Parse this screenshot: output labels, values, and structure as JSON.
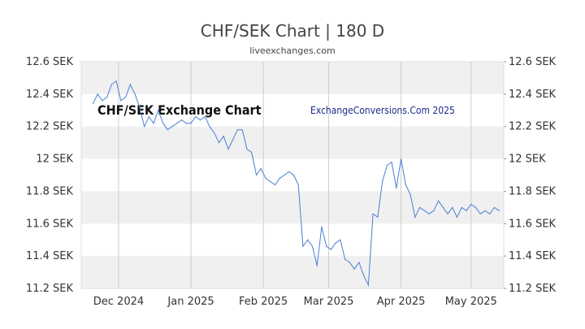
{
  "chart_data": {
    "type": "line",
    "title": "CHF/SEK Chart | 180 D",
    "subtitle": "liveexchanges.com",
    "watermark_left": "CHF/SEK Exchange Chart",
    "watermark_right": "ExchangeConversions.Com 2025",
    "ylim": [
      11.2,
      12.6
    ],
    "y_ticks": [
      {
        "value": 12.6,
        "label": "12.6 SEK"
      },
      {
        "value": 12.4,
        "label": "12.4 SEK"
      },
      {
        "value": 12.2,
        "label": "12.2 SEK"
      },
      {
        "value": 12.0,
        "label": "12 SEK"
      },
      {
        "value": 11.8,
        "label": "11.8 SEK"
      },
      {
        "value": 11.6,
        "label": "11.6 SEK"
      },
      {
        "value": 11.4,
        "label": "11.4 SEK"
      },
      {
        "value": 11.2,
        "label": "11.2 SEK"
      }
    ],
    "x_range": [
      "2024-11-15",
      "2025-05-15"
    ],
    "x_ticks": [
      {
        "date": "2024-12-01",
        "label": "Dec 2024"
      },
      {
        "date": "2025-01-01",
        "label": "Jan 2025"
      },
      {
        "date": "2025-02-01",
        "label": "Feb 2025"
      },
      {
        "date": "2025-03-01",
        "label": "Mar 2025"
      },
      {
        "date": "2025-04-01",
        "label": "Apr 2025"
      },
      {
        "date": "2025-05-01",
        "label": "May 2025"
      }
    ],
    "grid": true,
    "line_color": "#4a7fd6",
    "band_color": "#f0f0f0",
    "series": [
      {
        "x": [
          "2024-11-20",
          "2024-11-22",
          "2024-11-24",
          "2024-11-26",
          "2024-11-28",
          "2024-11-30",
          "2024-12-02",
          "2024-12-04",
          "2024-12-06",
          "2024-12-08",
          "2024-12-10",
          "2024-12-12",
          "2024-12-14",
          "2024-12-16",
          "2024-12-18",
          "2024-12-20",
          "2024-12-22",
          "2024-12-24",
          "2024-12-26",
          "2024-12-28",
          "2024-12-30",
          "2025-01-01",
          "2025-01-03",
          "2025-01-05",
          "2025-01-07",
          "2025-01-09",
          "2025-01-11",
          "2025-01-13",
          "2025-01-15",
          "2025-01-17",
          "2025-01-19",
          "2025-01-21",
          "2025-01-23",
          "2025-01-25",
          "2025-01-27",
          "2025-01-29",
          "2025-01-31",
          "2025-02-02",
          "2025-02-04",
          "2025-02-06",
          "2025-02-08",
          "2025-02-10",
          "2025-02-12",
          "2025-02-14",
          "2025-02-16",
          "2025-02-18",
          "2025-02-20",
          "2025-02-22",
          "2025-02-24",
          "2025-02-26",
          "2025-02-28",
          "2025-03-02",
          "2025-03-04",
          "2025-03-06",
          "2025-03-08",
          "2025-03-10",
          "2025-03-12",
          "2025-03-14",
          "2025-03-16",
          "2025-03-18",
          "2025-03-20",
          "2025-03-22",
          "2025-03-24",
          "2025-03-26",
          "2025-03-28",
          "2025-03-30",
          "2025-04-01",
          "2025-04-03",
          "2025-04-05",
          "2025-04-07",
          "2025-04-09",
          "2025-04-11",
          "2025-04-13",
          "2025-04-15",
          "2025-04-17",
          "2025-04-19",
          "2025-04-21",
          "2025-04-23",
          "2025-04-25",
          "2025-04-27",
          "2025-04-29",
          "2025-05-01",
          "2025-05-03",
          "2025-05-05",
          "2025-05-07",
          "2025-05-09",
          "2025-05-11",
          "2025-05-13"
        ],
        "values": [
          12.34,
          12.4,
          12.36,
          12.38,
          12.46,
          12.48,
          12.36,
          12.38,
          12.46,
          12.4,
          12.32,
          12.2,
          12.26,
          12.22,
          12.3,
          12.22,
          12.18,
          12.2,
          12.22,
          12.24,
          12.22,
          12.22,
          12.26,
          12.24,
          12.26,
          12.2,
          12.16,
          12.1,
          12.14,
          12.06,
          12.12,
          12.18,
          12.18,
          12.06,
          12.04,
          11.9,
          11.94,
          11.88,
          11.86,
          11.84,
          11.88,
          11.9,
          11.92,
          11.9,
          11.84,
          11.46,
          11.5,
          11.46,
          11.34,
          11.58,
          11.46,
          11.44,
          11.48,
          11.5,
          11.38,
          11.36,
          11.32,
          11.36,
          11.28,
          11.22,
          11.66,
          11.64,
          11.86,
          11.96,
          11.98,
          11.82,
          12.0,
          11.84,
          11.78,
          11.64,
          11.7,
          11.68,
          11.66,
          11.68,
          11.74,
          11.7,
          11.66,
          11.7,
          11.64,
          11.7,
          11.68,
          11.72,
          11.7,
          11.66,
          11.68,
          11.66,
          11.7,
          11.68
        ]
      }
    ]
  }
}
